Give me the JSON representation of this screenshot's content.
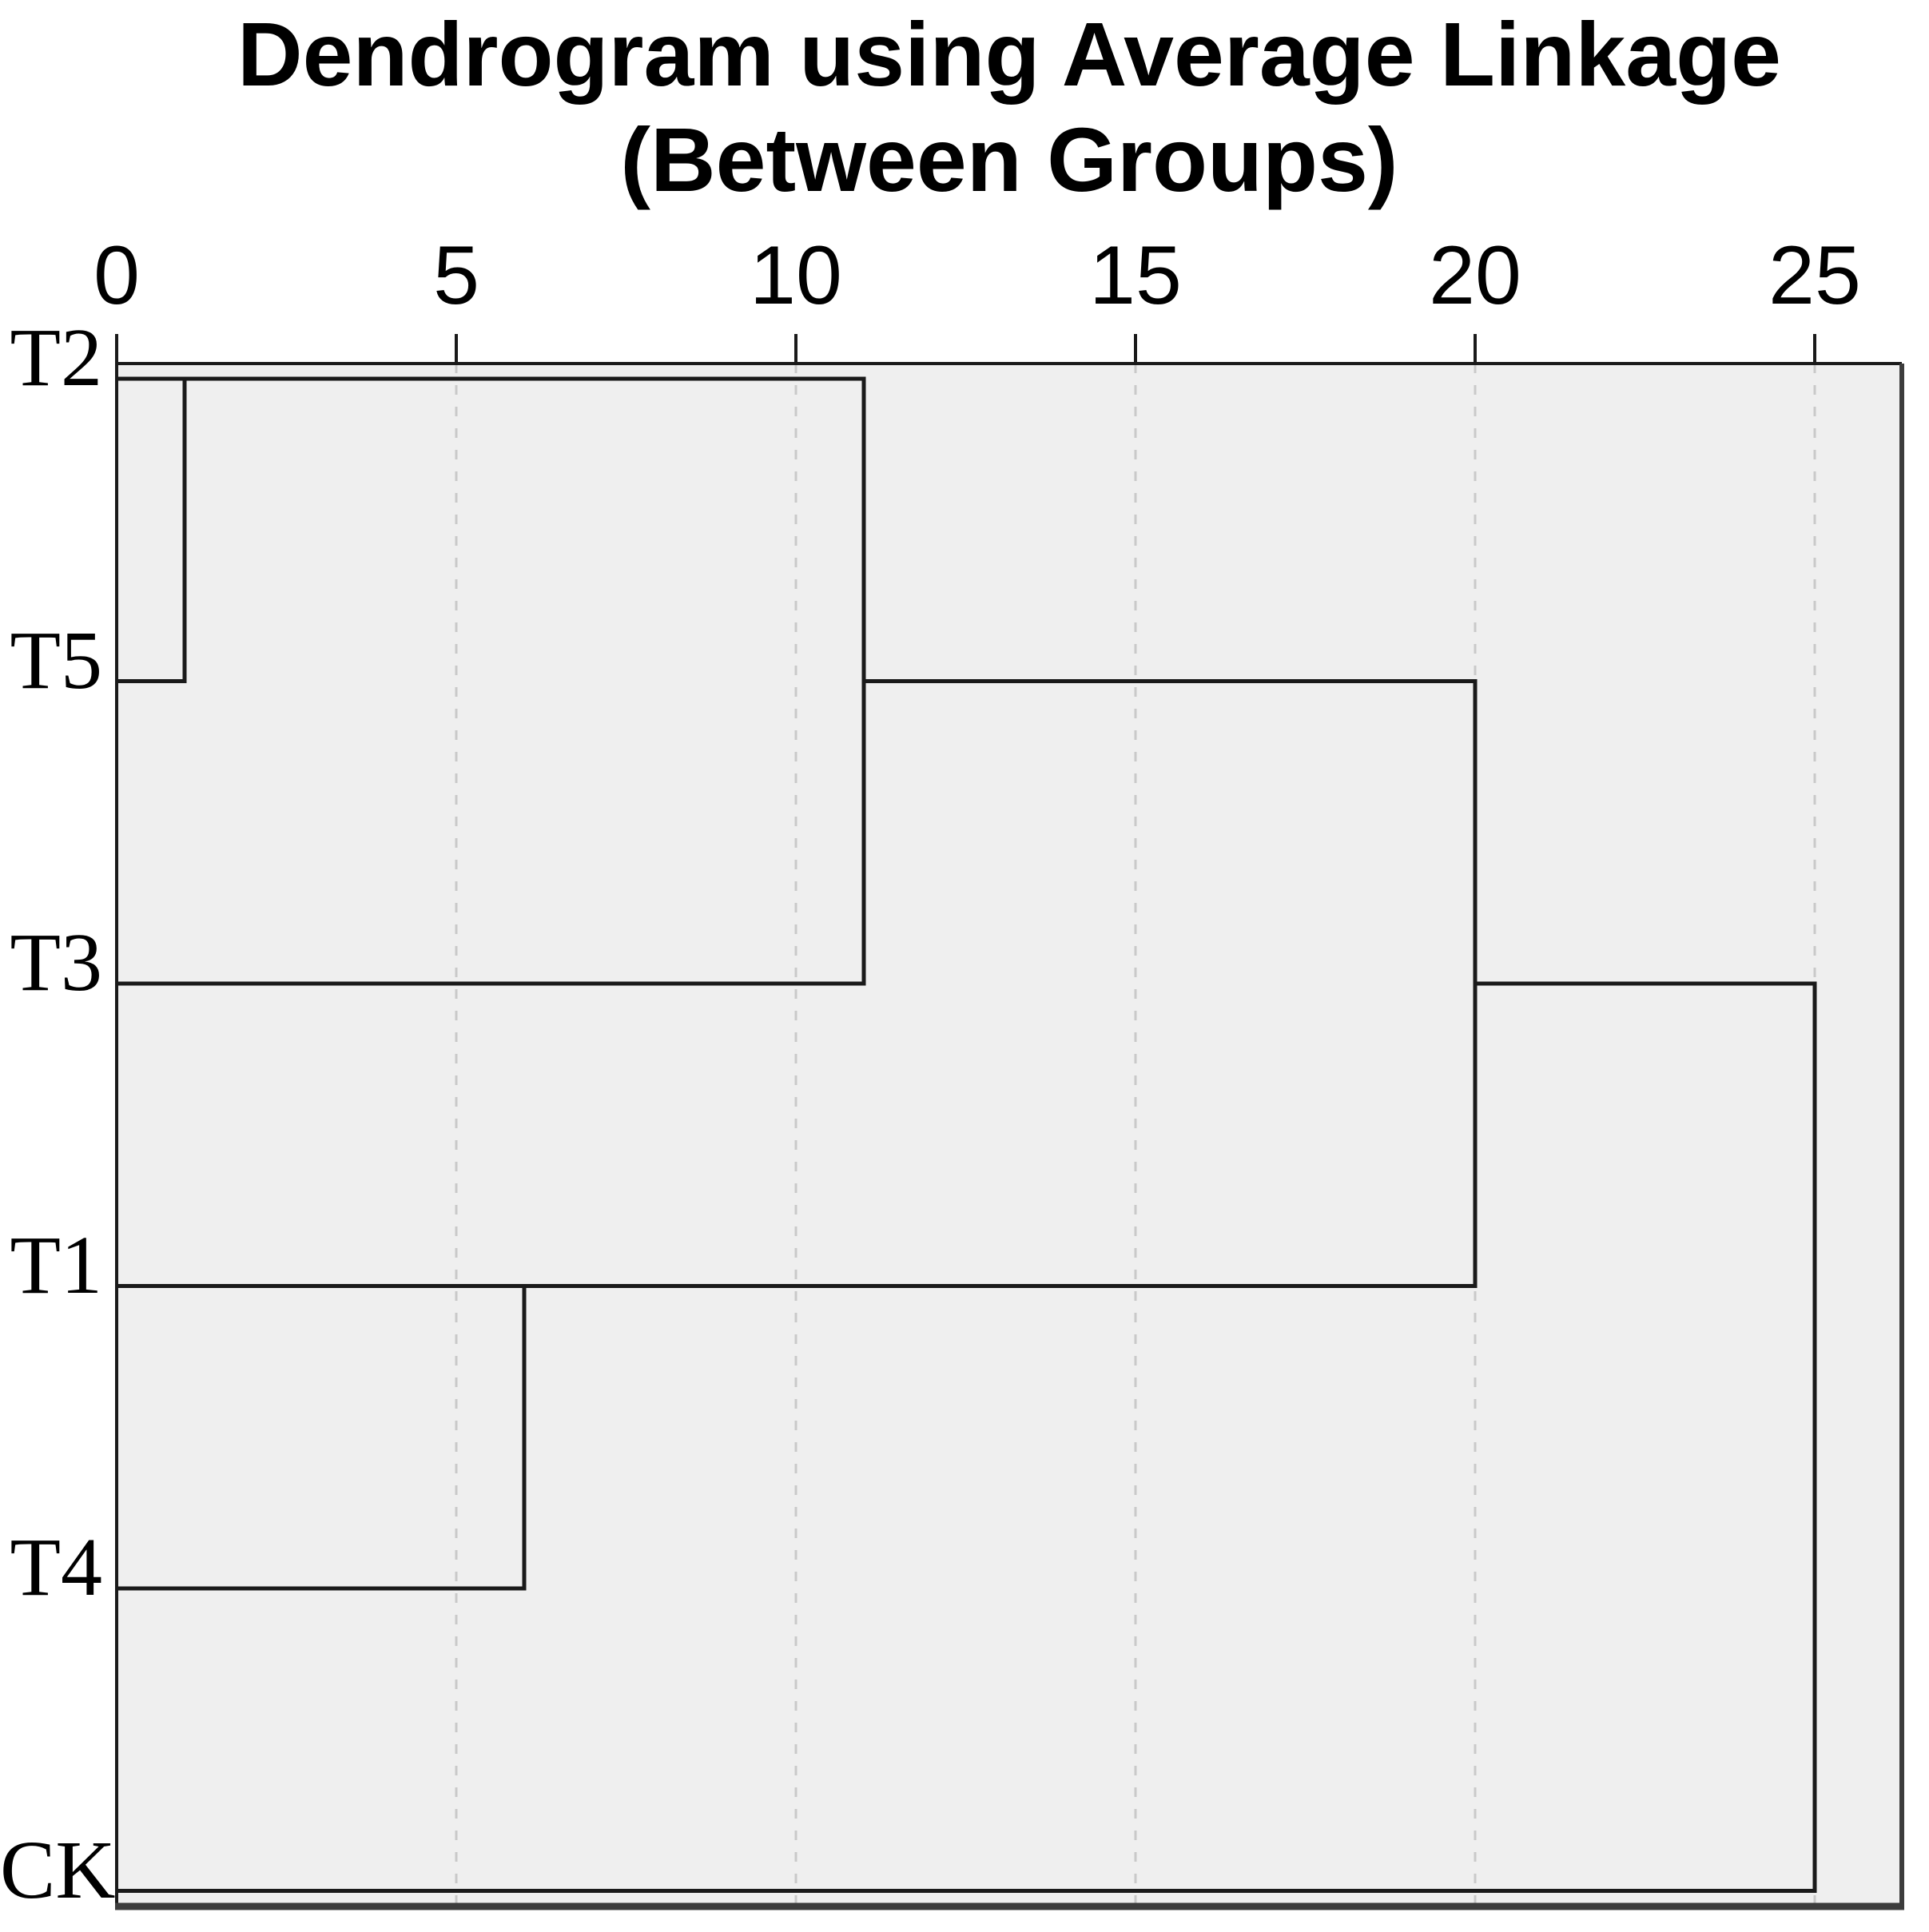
{
  "figure": {
    "title_line1": "Dendrogram using Average Linkage",
    "title_line2": "(Between Groups)"
  },
  "chart_data": {
    "type": "dendrogram",
    "title": "Dendrogram using Average Linkage (Between Groups)",
    "orientation": "horizontal; leaves on left; distance axis on top",
    "leaves": [
      "T2",
      "T5",
      "T3",
      "T1",
      "T4",
      "CK"
    ],
    "axis": {
      "position": "top",
      "min": 0,
      "max": 25,
      "ticks": [
        0,
        5,
        10,
        15,
        20,
        25
      ],
      "gridline_values": [
        5,
        10,
        15,
        20,
        25
      ],
      "gridline_style": "dashed"
    },
    "merges": [
      {
        "members": [
          "T2",
          "T5"
        ],
        "distance": 1
      },
      {
        "members": [
          "T1",
          "T4"
        ],
        "distance": 6
      },
      {
        "members": [
          "T2+T5",
          "T3"
        ],
        "distance": 11
      },
      {
        "members": [
          "T2+T5+T3",
          "T1+T4"
        ],
        "distance": 20
      },
      {
        "members": [
          "T2+T5+T3+T1+T4",
          "CK"
        ],
        "distance": 25
      }
    ],
    "h_segments": [
      {
        "row": 0,
        "from": 0,
        "to": 11
      },
      {
        "row": 1,
        "from": 0,
        "to": 1
      },
      {
        "row": 2,
        "from": 0,
        "to": 11
      },
      {
        "row": 3,
        "from": 0,
        "to": 20
      },
      {
        "row": 4,
        "from": 0,
        "to": 6
      },
      {
        "row": 5,
        "from": 0,
        "to": 25
      },
      {
        "row": 1,
        "from": 11,
        "to": 20
      },
      {
        "row": 2,
        "from": 20,
        "to": 25
      }
    ],
    "v_segments": [
      {
        "value": 1,
        "from_row": 0,
        "to_row": 1
      },
      {
        "value": 11,
        "from_row": 0,
        "to_row": 2
      },
      {
        "value": 6,
        "from_row": 3,
        "to_row": 4
      },
      {
        "value": 20,
        "from_row": 1,
        "to_row": 3
      },
      {
        "value": 25,
        "from_row": 2,
        "to_row": 5
      }
    ],
    "colors": {
      "plot_background": "#efefef",
      "dendrogram_line": "#1a1a1a",
      "axis_line": "#1a1a1a",
      "frame_dark": "#3c3c3c",
      "gridline": "#c9c9c9",
      "text": "#000000"
    }
  }
}
